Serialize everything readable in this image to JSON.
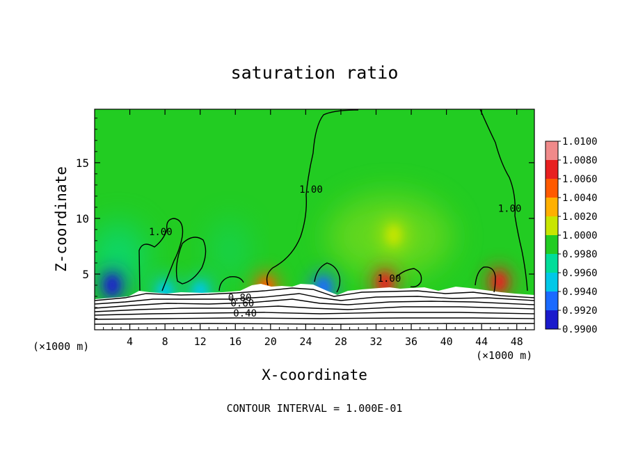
{
  "chart_data": {
    "type": "heatmap",
    "title": "saturation ratio",
    "xlabel": "X-coordinate",
    "ylabel": "Z-coordinate",
    "x_unit_left": "(×1000 m)",
    "x_unit_right": "(×1000 m)",
    "footer": "CONTOUR INTERVAL = 1.000E-01",
    "xlim": [
      0,
      50
    ],
    "ylim": [
      0,
      19.8
    ],
    "x_ticks": [
      4,
      8,
      12,
      16,
      20,
      24,
      28,
      32,
      36,
      40,
      44,
      48
    ],
    "y_ticks": [
      5,
      10,
      15
    ],
    "colorbar": {
      "labels": [
        "1.0100",
        "1.0080",
        "1.0060",
        "1.0040",
        "1.0020",
        "1.0000",
        "0.9980",
        "0.9960",
        "0.9940",
        "0.9920",
        "0.9900"
      ],
      "colors": [
        "#f08a8a",
        "#e82020",
        "#ff5a00",
        "#ffb000",
        "#c8e600",
        "#22cc22",
        "#00dd99",
        "#00c8e8",
        "#1a6aff",
        "#1a1acc",
        "#7a0a9a"
      ]
    },
    "contour_labels": [
      {
        "text": "1.00",
        "x": 7.5,
        "z": 8.5
      },
      {
        "text": "1.00",
        "x": 24.6,
        "z": 12.3
      },
      {
        "text": "1.00",
        "x": 33.5,
        "z": 4.3
      },
      {
        "text": "1.00",
        "x": 47.2,
        "z": 10.6
      },
      {
        "text": "0.80",
        "x": 16.5,
        "z": 2.6
      },
      {
        "text": "0.60",
        "x": 16.8,
        "z": 2.1
      },
      {
        "text": "0.40",
        "x": 17.1,
        "z": 1.2
      }
    ],
    "features": [
      {
        "kind": "dry",
        "x": 2.0,
        "z": 4.0,
        "value": 0.992
      },
      {
        "kind": "dry",
        "x": 8.0,
        "z": 3.4,
        "value": 0.995
      },
      {
        "kind": "dry",
        "x": 12.0,
        "z": 3.4,
        "value": 0.996
      },
      {
        "kind": "dry",
        "x": 26.0,
        "z": 3.8,
        "value": 0.993
      },
      {
        "kind": "moist",
        "x": 19.5,
        "z": 3.8,
        "value": 1.006
      },
      {
        "kind": "moist",
        "x": 33.0,
        "z": 4.2,
        "value": 1.008
      },
      {
        "kind": "moist",
        "x": 46.0,
        "z": 4.3,
        "value": 1.008
      },
      {
        "kind": "moist",
        "x": 34.0,
        "z": 8.5,
        "value": 1.003
      }
    ]
  }
}
